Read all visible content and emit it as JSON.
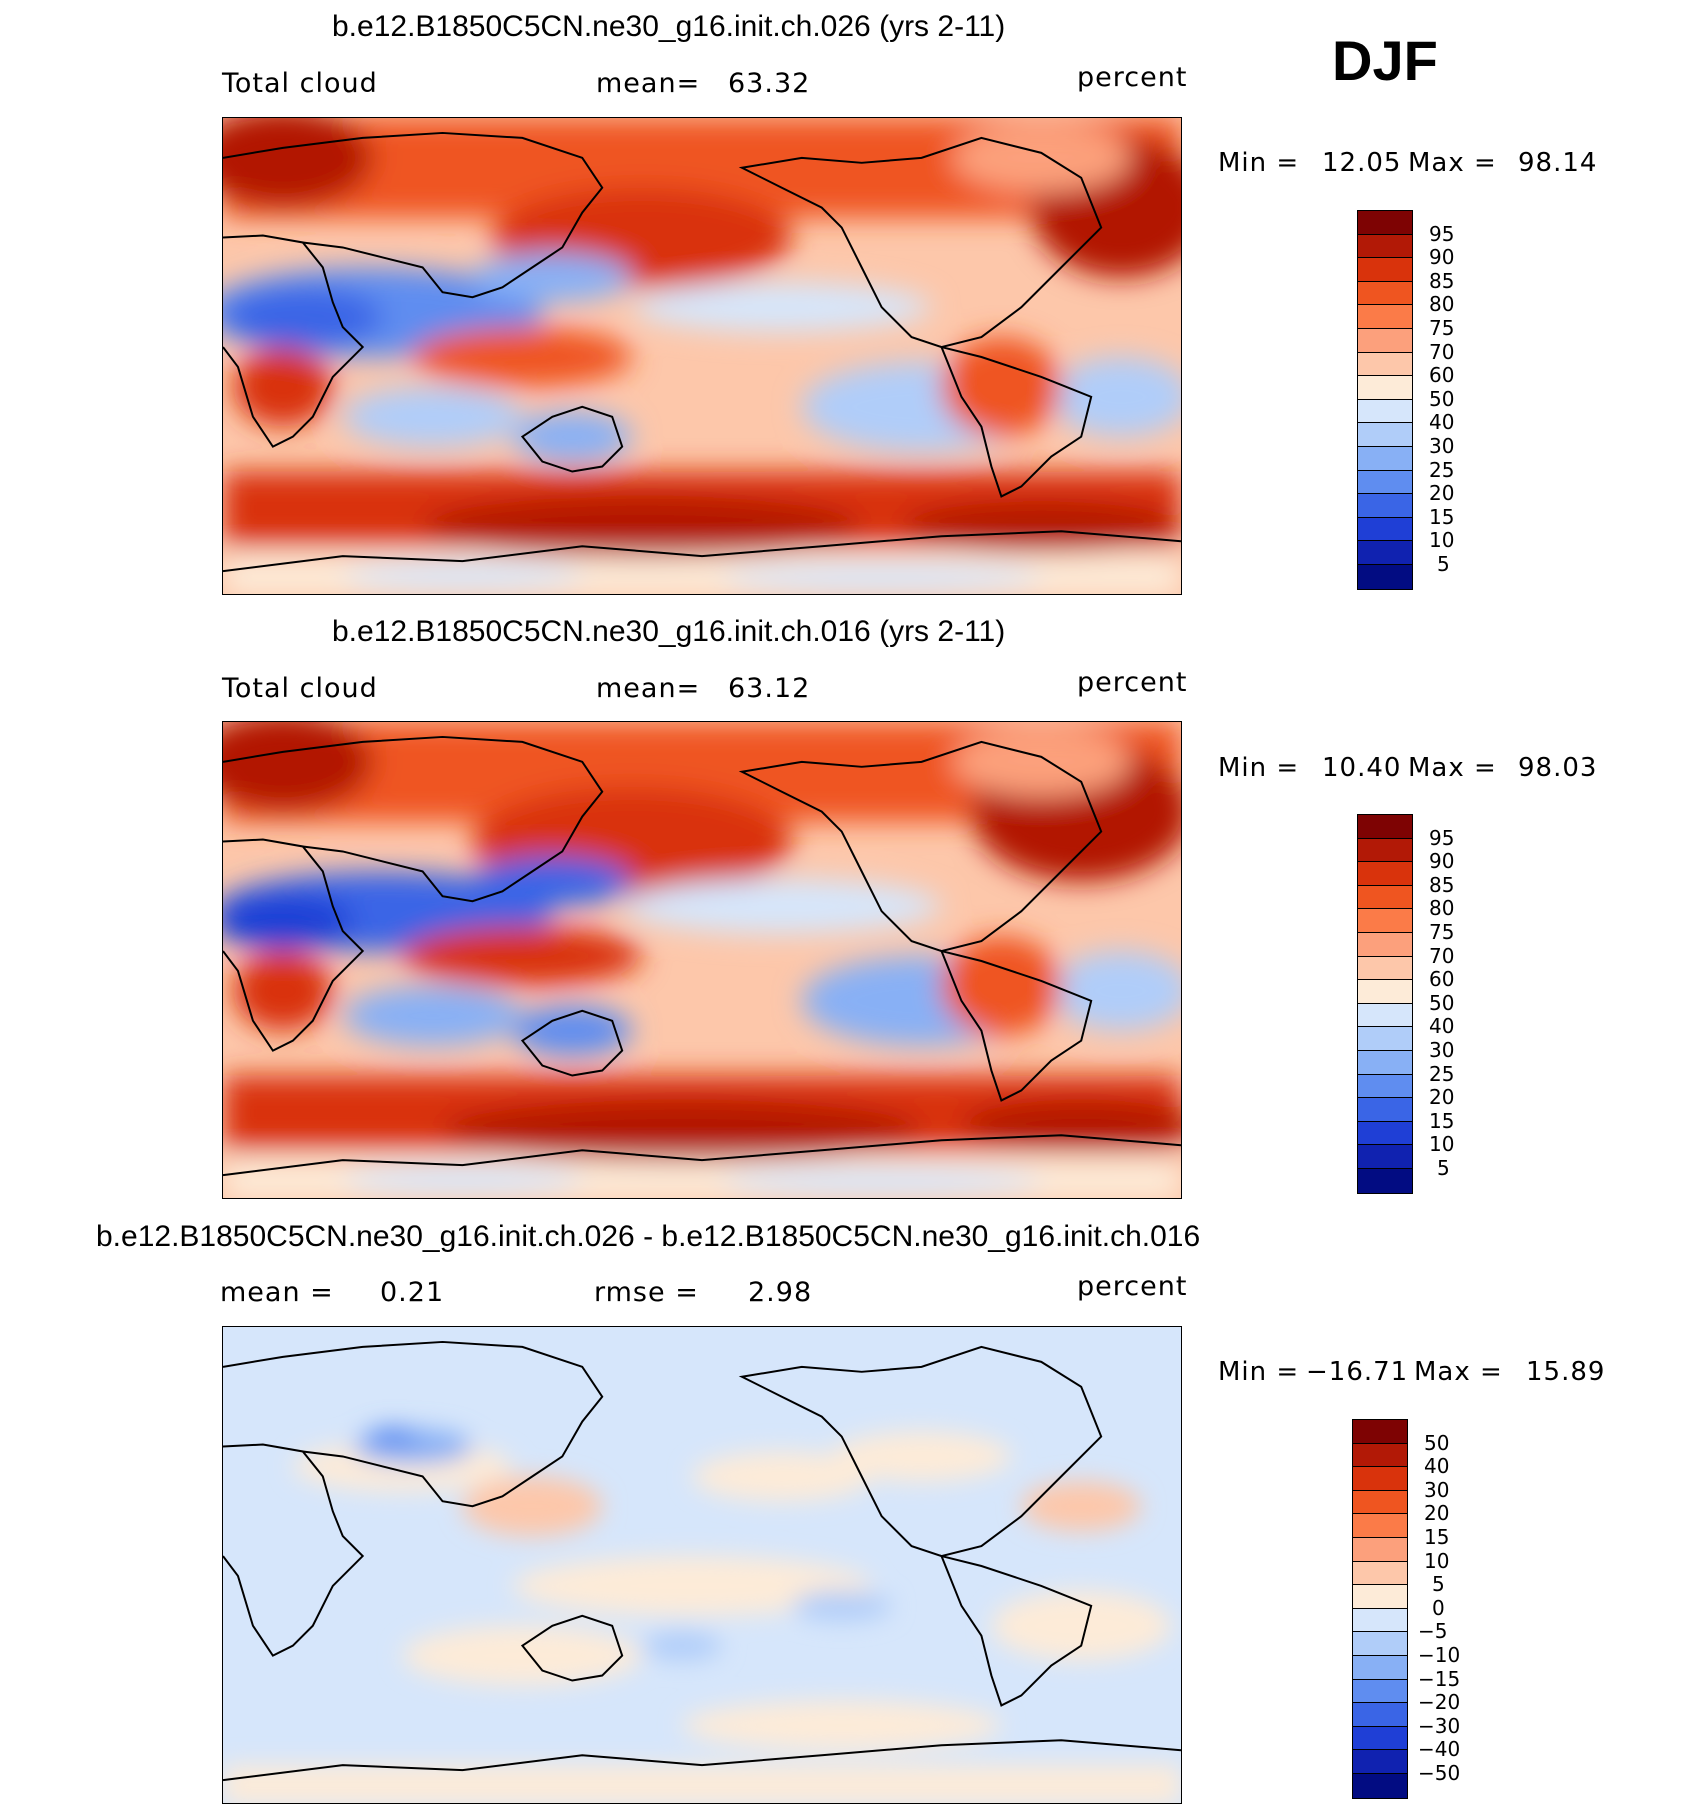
{
  "season": "DJF",
  "panels": [
    {
      "id": "case1",
      "title": "b.e12.B1850C5CN.ne30_g16.init.ch.026 (yrs 2-11)",
      "left_label": "Total cloud",
      "center_label": "mean=",
      "center_value": "63.32",
      "units": "percent",
      "min_label": "Min =",
      "min_value": "12.05",
      "max_label": "Max =",
      "max_value": "98.14",
      "colorbar_levels": [
        "95",
        "90",
        "85",
        "80",
        "75",
        "70",
        "60",
        "50",
        "40",
        "30",
        "25",
        "20",
        "15",
        "10",
        "5"
      ],
      "colorbar_colors": [
        "#7e0303",
        "#b21906",
        "#d9330c",
        "#ef5520",
        "#fb7b48",
        "#fca07c",
        "#fdc7aa",
        "#fdebd8",
        "#d6e6fb",
        "#b0cdf9",
        "#88b0f5",
        "#5f8df0",
        "#3a65e6",
        "#1f3fd6",
        "#1022b0",
        "#020c82"
      ]
    },
    {
      "id": "case2",
      "title": "b.e12.B1850C5CN.ne30_g16.init.ch.016 (yrs 2-11)",
      "left_label": "Total cloud",
      "center_label": "mean=",
      "center_value": "63.12",
      "units": "percent",
      "min_label": "Min =",
      "min_value": "10.40",
      "max_label": "Max =",
      "max_value": "98.03",
      "colorbar_levels": [
        "95",
        "90",
        "85",
        "80",
        "75",
        "70",
        "60",
        "50",
        "40",
        "30",
        "25",
        "20",
        "15",
        "10",
        "5"
      ],
      "colorbar_colors": [
        "#7e0303",
        "#b21906",
        "#d9330c",
        "#ef5520",
        "#fb7b48",
        "#fca07c",
        "#fdc7aa",
        "#fdebd8",
        "#d6e6fb",
        "#b0cdf9",
        "#88b0f5",
        "#5f8df0",
        "#3a65e6",
        "#1f3fd6",
        "#1022b0",
        "#020c82"
      ]
    },
    {
      "id": "diff",
      "title": "b.e12.B1850C5CN.ne30_g16.init.ch.026 - b.e12.B1850C5CN.ne30_g16.init.ch.016",
      "left_label": "mean =",
      "left_value": "0.21",
      "center_label": "rmse =",
      "center_value": "2.98",
      "units": "percent",
      "min_label": "Min =",
      "min_value": "−16.71",
      "max_label": "Max =",
      "max_value": "15.89",
      "colorbar_levels": [
        "50",
        "40",
        "30",
        "20",
        "15",
        "10",
        "5",
        "0",
        "−5",
        "−10",
        "−15",
        "−20",
        "−30",
        "−40",
        "−50"
      ],
      "colorbar_colors": [
        "#7e0303",
        "#b21906",
        "#d9330c",
        "#ef5520",
        "#fb7b48",
        "#fca07c",
        "#fdc7aa",
        "#fdebd8",
        "#d6e6fb",
        "#b0cdf9",
        "#88b0f5",
        "#5f8df0",
        "#3a65e6",
        "#1f3fd6",
        "#1022b0",
        "#020c82"
      ]
    }
  ]
}
